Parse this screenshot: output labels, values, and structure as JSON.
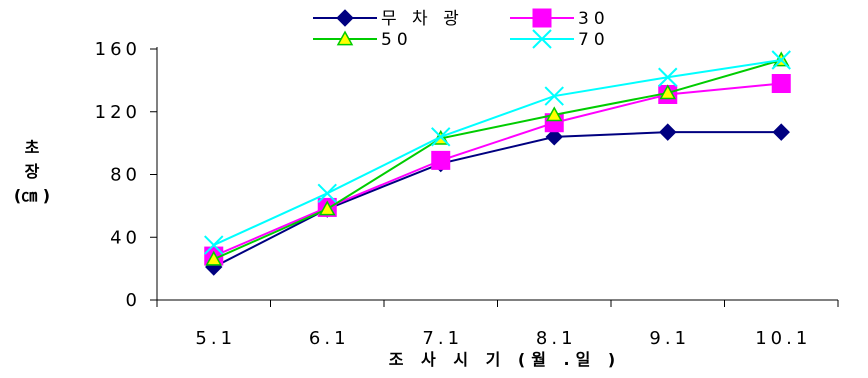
{
  "chart_data": {
    "type": "line",
    "title": "",
    "xlabel": "조 사 시 기 (월 .일 )",
    "ylabel_lines": [
      "초",
      "장",
      "(㎝ )"
    ],
    "categories": [
      "5.1",
      "6.1",
      "7.1",
      "8.1",
      "9.1",
      "10.1"
    ],
    "ylim": [
      0,
      160
    ],
    "yticks": [
      "0",
      "40",
      "80",
      "120",
      "160"
    ],
    "grid": false,
    "legend_position": "top",
    "series": [
      {
        "name": "무 차 광",
        "color": "#000080",
        "marker": "diamond",
        "values": [
          21,
          58,
          87,
          104,
          107,
          107
        ]
      },
      {
        "name": "30",
        "color": "#FF00FF",
        "marker": "square",
        "values": [
          28,
          59,
          89,
          113,
          131,
          138
        ]
      },
      {
        "name": "50",
        "color": "#00CC00",
        "marker": "triangle",
        "values": [
          26,
          58,
          103,
          118,
          132,
          153
        ]
      },
      {
        "name": "70",
        "color": "#00FFFF",
        "marker": "x",
        "values": [
          35,
          68,
          104,
          130,
          142,
          153
        ]
      }
    ]
  }
}
